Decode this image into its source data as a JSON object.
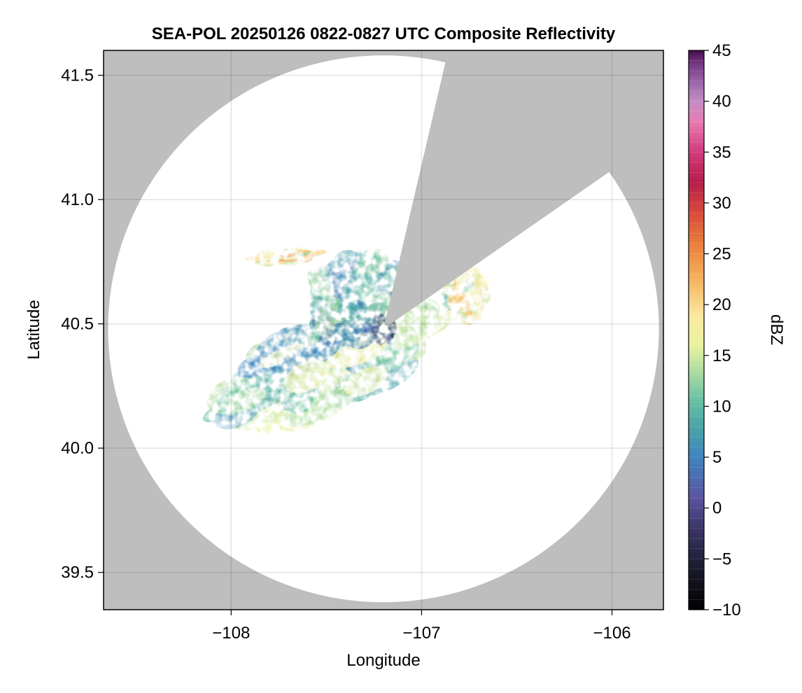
{
  "chart_data": {
    "type": "heatmap",
    "title": "SEA-POL 20250126 0822-0827 UTC Composite Reflectivity",
    "xlabel": "Longitude",
    "ylabel": "Latitude",
    "xlim": [
      -108.67,
      -105.73
    ],
    "ylim": [
      39.35,
      41.6
    ],
    "xticks": [
      -108,
      -107,
      -106
    ],
    "xtick_labels": [
      "−108",
      "−107",
      "−106"
    ],
    "yticks": [
      39.5,
      40.0,
      40.5,
      41.0,
      41.5
    ],
    "ytick_labels": [
      "39.5",
      "40.0",
      "40.5",
      "41.0",
      "41.5"
    ],
    "grid": true,
    "background_color": "#bebebe",
    "radar_center": [
      -107.2,
      40.48
    ],
    "radar_range_deg_lat": 1.1,
    "blocked_sectors_bearing_deg": [
      [
        13,
        55
      ]
    ],
    "colorbar": {
      "label": "dBZ",
      "range": [
        -10,
        45
      ],
      "ticks": [
        -10,
        -5,
        0,
        5,
        10,
        15,
        20,
        25,
        30,
        35,
        40,
        45
      ],
      "tick_labels": [
        "−10",
        "−5",
        "0",
        "5",
        "10",
        "15",
        "20",
        "25",
        "30",
        "35",
        "40",
        "45"
      ],
      "colormap_stops": [
        [
          "#000000",
          -10
        ],
        [
          "#1a1a2e",
          -6
        ],
        [
          "#3b3566",
          -2
        ],
        [
          "#5b54a0",
          1
        ],
        [
          "#3f84c0",
          5
        ],
        [
          "#4aa5a6",
          8
        ],
        [
          "#66c0a4",
          10.5
        ],
        [
          "#a4d7a0",
          13
        ],
        [
          "#e9f3a0",
          16
        ],
        [
          "#fbe8a0",
          19
        ],
        [
          "#f4b25d",
          22.5
        ],
        [
          "#e87d3d",
          26
        ],
        [
          "#d84b3b",
          29
        ],
        [
          "#b51e4a",
          32
        ],
        [
          "#d23b7c",
          35
        ],
        [
          "#e87cb3",
          38
        ],
        [
          "#c28ec5",
          40
        ],
        [
          "#9a62a9",
          42
        ],
        [
          "#6e2f7a",
          44
        ],
        [
          "#3f0d48",
          45
        ]
      ]
    },
    "echoes": [
      {
        "region": "main southwest band",
        "center": [
          -107.5,
          40.34
        ],
        "extent_deg": [
          0.55,
          0.17
        ],
        "orientation_deg": 25,
        "dbz_range": [
          3,
          18
        ]
      },
      {
        "region": "northwest of radar",
        "center": [
          -107.35,
          40.6
        ],
        "extent_deg": [
          0.25,
          0.16
        ],
        "orientation_deg": 35,
        "dbz_range": [
          2,
          14
        ]
      },
      {
        "region": "northern streak",
        "center": [
          -107.72,
          40.77
        ],
        "extent_deg": [
          0.17,
          0.03
        ],
        "orientation_deg": 5,
        "dbz_range": [
          12,
          26
        ]
      },
      {
        "region": "northeast cell",
        "center": [
          -106.77,
          40.62
        ],
        "extent_deg": [
          0.12,
          0.1
        ],
        "orientation_deg": 20,
        "dbz_range": [
          8,
          22
        ]
      },
      {
        "region": "near-radar ring",
        "center": [
          -107.2,
          40.48
        ],
        "extent_deg": [
          0.06,
          0.05
        ],
        "orientation_deg": 0,
        "dbz_range": [
          -5,
          5
        ]
      }
    ]
  }
}
